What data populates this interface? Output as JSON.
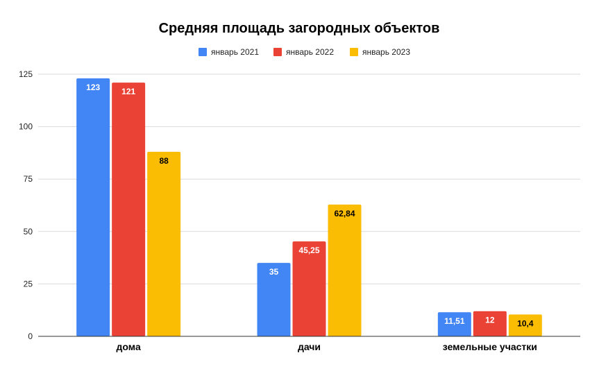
{
  "chart_data": {
    "type": "bar",
    "title": "Средняя площадь загородных объектов",
    "categories": [
      "дома",
      "дачи",
      "земельные участки"
    ],
    "series": [
      {
        "name": "январь 2021",
        "color": "#4285F4",
        "values": [
          123,
          35,
          11.51
        ],
        "labels": [
          "123",
          "35",
          "11,51"
        ],
        "label_color": "#ffffff"
      },
      {
        "name": "январь 2022",
        "color": "#EA4335",
        "values": [
          121,
          45.25,
          12
        ],
        "labels": [
          "121",
          "45,25",
          "12"
        ],
        "label_color": "#ffffff"
      },
      {
        "name": "январь 2023",
        "color": "#FBBC04",
        "values": [
          88,
          62.84,
          10.4
        ],
        "labels": [
          "88",
          "62,84",
          "10,4"
        ],
        "label_color": "#000000"
      }
    ],
    "y_ticks": [
      "0",
      "25",
      "50",
      "75",
      "100",
      "125"
    ],
    "ylim": [
      0,
      125
    ],
    "grid": true,
    "legend_position": "top-center",
    "xlabel": "",
    "ylabel": ""
  }
}
